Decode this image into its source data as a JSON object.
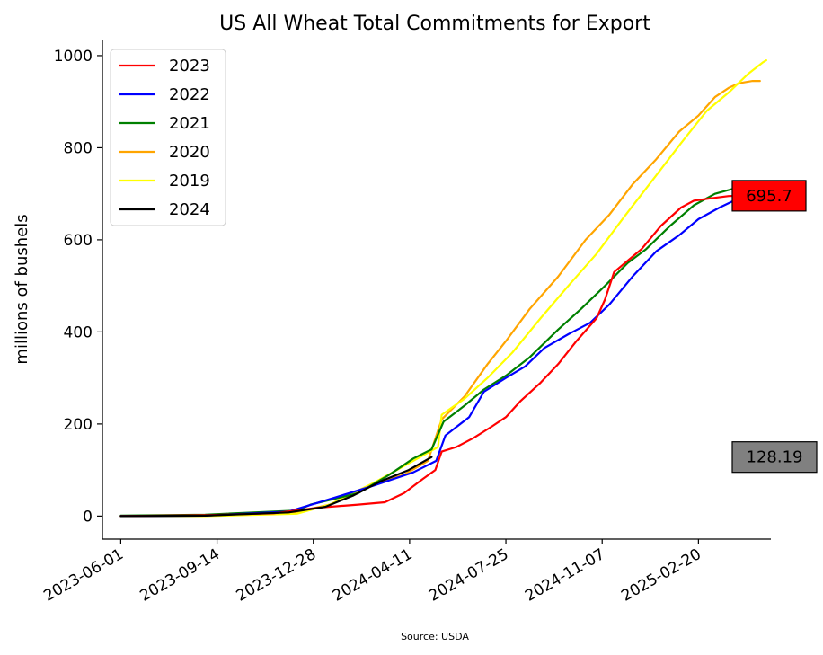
{
  "chart_data": {
    "type": "line",
    "title": "US All Wheat Total Commitments for Export",
    "xlabel": "",
    "ylabel": "millions of bushels",
    "source": "Source: USDA",
    "x_ticks": [
      "2023-06-01",
      "2023-09-14",
      "2023-12-28",
      "2024-04-11",
      "2024-07-25",
      "2024-11-07",
      "2025-02-20"
    ],
    "y_ticks": [
      0,
      200,
      400,
      600,
      800,
      1000
    ],
    "xlim": [
      "2023-05-12",
      "2025-05-10"
    ],
    "ylim": [
      -50,
      1035
    ],
    "grid": false,
    "legend_position": "top-left",
    "series": [
      {
        "name": "2023",
        "color": "#ff0000",
        "points": [
          [
            "2023-06-01",
            0
          ],
          [
            "2023-09-01",
            2
          ],
          [
            "2023-11-15",
            6
          ],
          [
            "2024-01-01",
            18
          ],
          [
            "2024-02-15",
            25
          ],
          [
            "2024-03-15",
            30
          ],
          [
            "2024-04-05",
            50
          ],
          [
            "2024-04-25",
            80
          ],
          [
            "2024-05-09",
            100
          ],
          [
            "2024-05-16",
            140
          ],
          [
            "2024-06-01",
            150
          ],
          [
            "2024-06-20",
            170
          ],
          [
            "2024-07-10",
            195
          ],
          [
            "2024-07-25",
            215
          ],
          [
            "2024-08-10",
            250
          ],
          [
            "2024-09-01",
            290
          ],
          [
            "2024-09-20",
            330
          ],
          [
            "2024-10-10",
            380
          ],
          [
            "2024-11-01",
            430
          ],
          [
            "2024-11-10",
            470
          ],
          [
            "2024-11-20",
            530
          ],
          [
            "2024-12-05",
            555
          ],
          [
            "2024-12-20",
            580
          ],
          [
            "2025-01-10",
            630
          ],
          [
            "2025-02-01",
            670
          ],
          [
            "2025-02-15",
            685
          ],
          [
            "2025-03-05",
            690
          ],
          [
            "2025-03-25",
            695
          ],
          [
            "2025-04-15",
            696
          ],
          [
            "2025-04-28",
            695.7
          ]
        ]
      },
      {
        "name": "2022",
        "color": "#0000ff",
        "points": [
          [
            "2023-06-01",
            0
          ],
          [
            "2023-09-01",
            1
          ],
          [
            "2023-12-01",
            10
          ],
          [
            "2024-01-20",
            40
          ],
          [
            "2024-03-01",
            65
          ],
          [
            "2024-04-15",
            95
          ],
          [
            "2024-05-10",
            120
          ],
          [
            "2024-05-20",
            175
          ],
          [
            "2024-06-15",
            215
          ],
          [
            "2024-07-01",
            270
          ],
          [
            "2024-07-25",
            300
          ],
          [
            "2024-08-15",
            325
          ],
          [
            "2024-09-05",
            365
          ],
          [
            "2024-10-01",
            395
          ],
          [
            "2024-10-25",
            420
          ],
          [
            "2024-11-15",
            460
          ],
          [
            "2024-12-10",
            520
          ],
          [
            "2025-01-05",
            575
          ],
          [
            "2025-01-30",
            610
          ],
          [
            "2025-02-20",
            645
          ],
          [
            "2025-03-15",
            670
          ],
          [
            "2025-04-05",
            690
          ],
          [
            "2025-04-20",
            695
          ],
          [
            "2025-04-28",
            690
          ]
        ]
      },
      {
        "name": "2021",
        "color": "#008000",
        "points": [
          [
            "2023-06-01",
            1
          ],
          [
            "2023-09-01",
            3
          ],
          [
            "2023-12-10",
            12
          ],
          [
            "2023-12-25",
            25
          ],
          [
            "2024-01-15",
            35
          ],
          [
            "2024-02-15",
            50
          ],
          [
            "2024-03-20",
            90
          ],
          [
            "2024-04-15",
            125
          ],
          [
            "2024-05-05",
            145
          ],
          [
            "2024-05-18",
            205
          ],
          [
            "2024-06-10",
            240
          ],
          [
            "2024-07-01",
            275
          ],
          [
            "2024-07-25",
            305
          ],
          [
            "2024-08-20",
            345
          ],
          [
            "2024-09-20",
            405
          ],
          [
            "2024-10-15",
            450
          ],
          [
            "2024-11-10",
            500
          ],
          [
            "2024-12-05",
            550
          ],
          [
            "2024-12-25",
            580
          ],
          [
            "2025-01-20",
            630
          ],
          [
            "2025-02-15",
            675
          ],
          [
            "2025-03-10",
            700
          ],
          [
            "2025-04-01",
            712
          ],
          [
            "2025-04-28",
            715
          ]
        ]
      },
      {
        "name": "2020",
        "color": "#ffa500",
        "points": [
          [
            "2023-06-01",
            0
          ],
          [
            "2023-09-01",
            1
          ],
          [
            "2023-12-01",
            5
          ],
          [
            "2024-01-15",
            25
          ],
          [
            "2024-03-01",
            70
          ],
          [
            "2024-04-05",
            90
          ],
          [
            "2024-05-01",
            120
          ],
          [
            "2024-05-16",
            210
          ],
          [
            "2024-06-10",
            260
          ],
          [
            "2024-07-05",
            330
          ],
          [
            "2024-07-25",
            380
          ],
          [
            "2024-08-20",
            450
          ],
          [
            "2024-09-20",
            520
          ],
          [
            "2024-10-20",
            600
          ],
          [
            "2024-11-15",
            655
          ],
          [
            "2024-12-10",
            720
          ],
          [
            "2025-01-05",
            775
          ],
          [
            "2025-01-30",
            835
          ],
          [
            "2025-02-20",
            870
          ],
          [
            "2025-03-10",
            910
          ],
          [
            "2025-03-25",
            930
          ],
          [
            "2025-04-05",
            940
          ],
          [
            "2025-04-20",
            945
          ],
          [
            "2025-04-28",
            945
          ]
        ]
      },
      {
        "name": "2019",
        "color": "#ffff00",
        "points": [
          [
            "2023-06-01",
            0
          ],
          [
            "2023-09-01",
            0
          ],
          [
            "2023-12-10",
            5
          ],
          [
            "2024-01-15",
            25
          ],
          [
            "2024-03-01",
            70
          ],
          [
            "2024-04-15",
            120
          ],
          [
            "2024-05-12",
            150
          ],
          [
            "2024-05-16",
            220
          ],
          [
            "2024-06-10",
            255
          ],
          [
            "2024-07-05",
            300
          ],
          [
            "2024-08-01",
            355
          ],
          [
            "2024-09-01",
            430
          ],
          [
            "2024-10-01",
            500
          ],
          [
            "2024-11-01",
            570
          ],
          [
            "2024-12-01",
            650
          ],
          [
            "2025-01-05",
            740
          ],
          [
            "2025-02-01",
            810
          ],
          [
            "2025-03-01",
            880
          ],
          [
            "2025-03-25",
            920
          ],
          [
            "2025-04-15",
            960
          ],
          [
            "2025-05-01",
            985
          ],
          [
            "2025-05-05",
            990
          ]
        ]
      },
      {
        "name": "2024",
        "color": "#000000",
        "points": [
          [
            "2023-06-01",
            0
          ],
          [
            "2023-09-01",
            1
          ],
          [
            "2023-12-01",
            8
          ],
          [
            "2024-01-10",
            20
          ],
          [
            "2024-02-10",
            45
          ],
          [
            "2024-03-10",
            75
          ],
          [
            "2024-04-10",
            100
          ],
          [
            "2024-05-05",
            128.19
          ]
        ]
      }
    ],
    "callouts": [
      {
        "label": "695.7",
        "value": 695.7,
        "color": "#ff0000"
      },
      {
        "label": "128.19",
        "value": 128.19,
        "color": "#808080"
      }
    ]
  }
}
